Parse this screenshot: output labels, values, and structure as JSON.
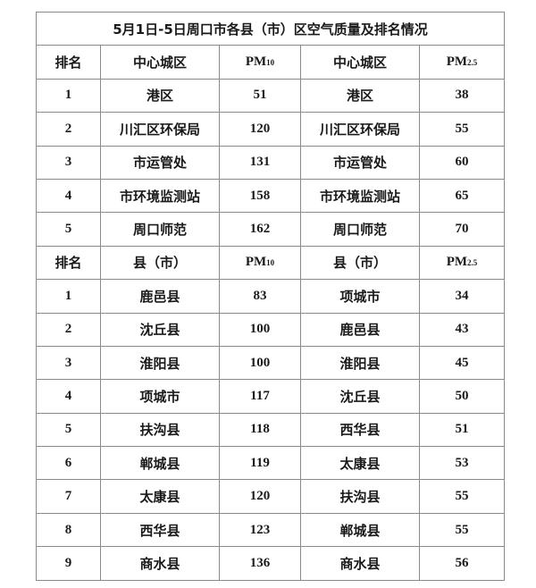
{
  "title": "5月1日-5日周口市各县（市）区空气质量及排名情况",
  "section1": {
    "headers": {
      "rank": "排名",
      "area_pm10": "中心城区",
      "pm10": "PM",
      "pm10_sub": "10",
      "area_pm25": "中心城区",
      "pm25": "PM",
      "pm25_sub": "2.5"
    },
    "rows": [
      {
        "rank": "1",
        "a": "港区",
        "pm10": "51",
        "b": "港区",
        "pm25": "38"
      },
      {
        "rank": "2",
        "a": "川汇区环保局",
        "pm10": "120",
        "b": "川汇区环保局",
        "pm25": "55"
      },
      {
        "rank": "3",
        "a": "市运管处",
        "pm10": "131",
        "b": "市运管处",
        "pm25": "60"
      },
      {
        "rank": "4",
        "a": "市环境监测站",
        "pm10": "158",
        "b": "市环境监测站",
        "pm25": "65"
      },
      {
        "rank": "5",
        "a": "周口师范",
        "pm10": "162",
        "b": "周口师范",
        "pm25": "70"
      }
    ]
  },
  "section2": {
    "headers": {
      "rank": "排名",
      "area_pm10": "县（市）",
      "pm10": "PM",
      "pm10_sub": "10",
      "area_pm25": "县（市）",
      "pm25": "PM",
      "pm25_sub": "2.5"
    },
    "rows": [
      {
        "rank": "1",
        "a": "鹿邑县",
        "pm10": "83",
        "b": "项城市",
        "pm25": "34"
      },
      {
        "rank": "2",
        "a": "沈丘县",
        "pm10": "100",
        "b": "鹿邑县",
        "pm25": "43"
      },
      {
        "rank": "3",
        "a": "淮阳县",
        "pm10": "100",
        "b": "淮阳县",
        "pm25": "45"
      },
      {
        "rank": "4",
        "a": "项城市",
        "pm10": "117",
        "b": "沈丘县",
        "pm25": "50"
      },
      {
        "rank": "5",
        "a": "扶沟县",
        "pm10": "118",
        "b": "西华县",
        "pm25": "51"
      },
      {
        "rank": "6",
        "a": "郸城县",
        "pm10": "119",
        "b": "太康县",
        "pm25": "53"
      },
      {
        "rank": "7",
        "a": "太康县",
        "pm10": "120",
        "b": "扶沟县",
        "pm25": "55"
      },
      {
        "rank": "8",
        "a": "西华县",
        "pm10": "123",
        "b": "郸城县",
        "pm25": "55"
      },
      {
        "rank": "9",
        "a": "商水县",
        "pm10": "136",
        "b": "商水县",
        "pm25": "56"
      }
    ]
  }
}
